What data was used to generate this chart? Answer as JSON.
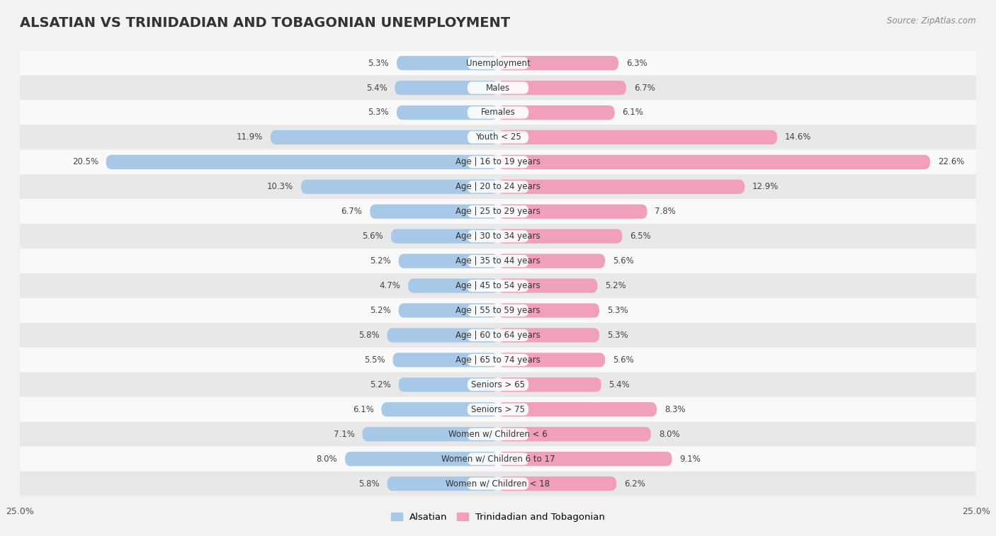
{
  "title": "ALSATIAN VS TRINIDADIAN AND TOBAGONIAN UNEMPLOYMENT",
  "source": "Source: ZipAtlas.com",
  "categories": [
    "Unemployment",
    "Males",
    "Females",
    "Youth < 25",
    "Age | 16 to 19 years",
    "Age | 20 to 24 years",
    "Age | 25 to 29 years",
    "Age | 30 to 34 years",
    "Age | 35 to 44 years",
    "Age | 45 to 54 years",
    "Age | 55 to 59 years",
    "Age | 60 to 64 years",
    "Age | 65 to 74 years",
    "Seniors > 65",
    "Seniors > 75",
    "Women w/ Children < 6",
    "Women w/ Children 6 to 17",
    "Women w/ Children < 18"
  ],
  "alsatian": [
    5.3,
    5.4,
    5.3,
    11.9,
    20.5,
    10.3,
    6.7,
    5.6,
    5.2,
    4.7,
    5.2,
    5.8,
    5.5,
    5.2,
    6.1,
    7.1,
    8.0,
    5.8
  ],
  "trinidadian": [
    6.3,
    6.7,
    6.1,
    14.6,
    22.6,
    12.9,
    7.8,
    6.5,
    5.6,
    5.2,
    5.3,
    5.3,
    5.6,
    5.4,
    8.3,
    8.0,
    9.1,
    6.2
  ],
  "alsatian_color": "#a8c8e8",
  "trinidadian_color": "#f0a0b8",
  "alsatian_label": "Alsatian",
  "trinidadian_label": "Trinidadian and Tobagonian",
  "xlim": 25.0,
  "bar_height": 0.58,
  "bg_color": "#f2f2f2",
  "row_color_light": "#f9f9f9",
  "row_color_dark": "#e8e8e8",
  "title_fontsize": 14,
  "label_fontsize": 8.5,
  "value_fontsize": 8.5,
  "source_fontsize": 8.5
}
